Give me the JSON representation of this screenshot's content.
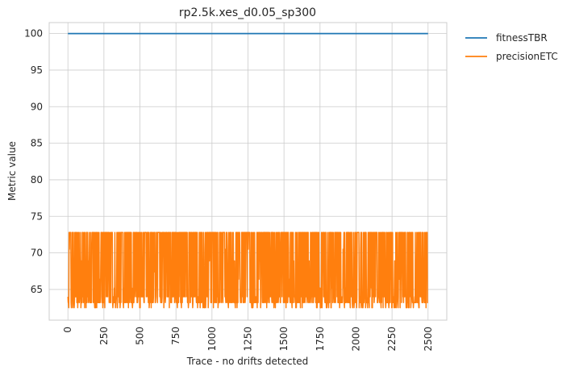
{
  "chart_data": {
    "type": "line",
    "title": "rp2.5k.xes_d0.05_sp300",
    "xlabel": "Trace - no drifts detected",
    "ylabel": "Metric value",
    "xlim": [
      -130,
      2630
    ],
    "ylim": [
      60.8,
      101.5
    ],
    "x_ticks": [
      0,
      250,
      500,
      750,
      1000,
      1250,
      1500,
      1750,
      2000,
      2250,
      2500
    ],
    "y_ticks": [
      65,
      70,
      75,
      80,
      85,
      90,
      95,
      100
    ],
    "grid": true,
    "legend_position": "outside-top-right",
    "series": [
      {
        "name": "fitnessTBR",
        "color": "#1f77b4",
        "x": [
          0,
          2500
        ],
        "values": [
          100,
          100
        ]
      },
      {
        "name": "precisionETC",
        "color": "#ff7f0e",
        "x_start": 0,
        "x_end": 2500,
        "levels": [
          72.8,
          70.5,
          68.9,
          67.4,
          66.4,
          65.2,
          64.0,
          63.2,
          62.5
        ],
        "min": 62.5,
        "max": 72.8,
        "sample_step": 2
      }
    ]
  }
}
